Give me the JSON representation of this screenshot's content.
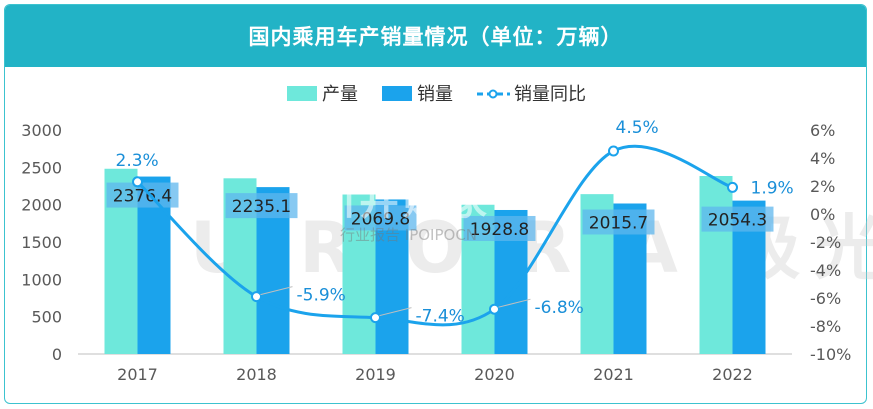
{
  "title": "国内乘用车产销量情况（单位：万辆）",
  "legend": [
    "产量",
    "销量",
    "销量同比"
  ],
  "watermark": "U R O R A 极光",
  "watermark_overlay": "川井购家",
  "watermark_sub": "行业报告 IPOIPOCN",
  "colors": {
    "production": "#6ee8db",
    "sales": "#1ba3ec",
    "yoy": "#1ba3ec",
    "title_bg": "#22b3c6"
  },
  "chart_data": {
    "type": "bar",
    "categories": [
      "2017",
      "2018",
      "2019",
      "2020",
      "2021",
      "2022"
    ],
    "series": [
      {
        "name": "产量",
        "values": [
          2481,
          2353,
          2136,
          1999,
          2141,
          2384
        ]
      },
      {
        "name": "销量",
        "values": [
          2376.4,
          2235.1,
          2069.8,
          1928.8,
          2015.7,
          2054.3
        ]
      },
      {
        "name": "销量同比",
        "type": "line",
        "axis": "right",
        "values": [
          2.3,
          -5.9,
          -7.4,
          -6.8,
          4.5,
          1.9
        ]
      }
    ],
    "sales_labels": [
      "2376.4",
      "2235.1",
      "2069.8",
      "1928.8",
      "2015.7",
      "2054.3"
    ],
    "yoy_labels": [
      "2.3%",
      "-5.9%",
      "-7.4%",
      "-6.8%",
      "4.5%",
      "1.9%"
    ],
    "y_left": {
      "ticks": [
        "0",
        "500",
        "1000",
        "1500",
        "2000",
        "2500",
        "3000"
      ],
      "ylim": [
        0,
        3000
      ]
    },
    "y_right": {
      "ticks": [
        "-10%",
        "-8%",
        "-6%",
        "-4%",
        "-2%",
        "0%",
        "2%",
        "4%",
        "6%"
      ],
      "ylim": [
        -10,
        6
      ]
    },
    "grid": false,
    "legend_position": "top-center"
  }
}
